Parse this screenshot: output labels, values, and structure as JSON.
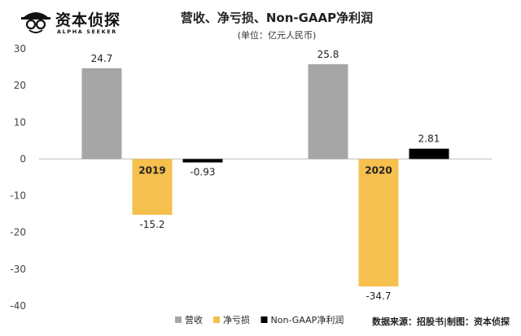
{
  "brand": {
    "name": "资本侦探",
    "tagline": "ALPHA SEEKER"
  },
  "source_note": "数据来源：招股书|制图：资本侦探",
  "colors": {
    "营收": "#a6a6a6",
    "净亏损": "#f5c04e",
    "Non-GAAP净利润": "#000000"
  },
  "chart_data": {
    "type": "bar",
    "title": "营收、净亏损、Non-GAAP净利润",
    "subtitle": "(单位：亿元人民币)",
    "categories": [
      "2019",
      "2020"
    ],
    "series": [
      {
        "name": "营收",
        "values": [
          24.7,
          25.8
        ],
        "labels": [
          "24.7",
          "25.8"
        ]
      },
      {
        "name": "净亏损",
        "values": [
          -15.2,
          -34.7
        ],
        "labels": [
          "-15.2",
          "-34.7"
        ]
      },
      {
        "name": "Non-GAAP净利润",
        "values": [
          -0.93,
          2.81
        ],
        "labels": [
          "-0.93",
          "2.81"
        ]
      }
    ],
    "ylim": [
      -40,
      30
    ],
    "yticks": [
      -40,
      -30,
      -20,
      -10,
      0,
      10,
      20,
      30
    ],
    "legend_position": "bottom",
    "grid": false
  }
}
